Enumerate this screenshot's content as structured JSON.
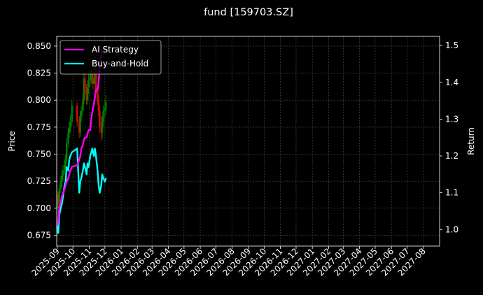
{
  "chart_data": {
    "type": "line",
    "title": "fund [159703.SZ]",
    "ylabel_left": "Price",
    "ylabel_right": "Return",
    "ylim_left": [
      0.665,
      0.859
    ],
    "ylim_right": [
      0.955,
      1.525
    ],
    "yticks_left": [
      "0.675",
      "0.700",
      "0.725",
      "0.750",
      "0.775",
      "0.800",
      "0.825",
      "0.850"
    ],
    "yticks_right": [
      "1.0",
      "1.1",
      "1.2",
      "1.3",
      "1.4",
      "1.5"
    ],
    "xticks": [
      "2025-09",
      "2025-10",
      "2025-11",
      "2025-12",
      "2026-01",
      "2026-02",
      "2026-03",
      "2026-04",
      "2026-05",
      "2026-06",
      "2026-07",
      "2026-08",
      "2026-09",
      "2026-10",
      "2026-11",
      "2026-12",
      "2027-01",
      "2027-02",
      "2027-03",
      "2027-04",
      "2027-05",
      "2027-06",
      "2027-07",
      "2027-08"
    ],
    "grid": true,
    "legend_position": "top-left",
    "series": [
      {
        "name": "AI Strategy",
        "color": "#ff00ff",
        "axis": "right",
        "x": [
          "2025-09-01",
          "2025-09-03",
          "2025-09-05",
          "2025-09-08",
          "2025-09-10",
          "2025-09-12",
          "2025-09-15",
          "2025-09-17",
          "2025-09-19",
          "2025-09-22",
          "2025-09-24",
          "2025-09-26",
          "2025-09-29",
          "2025-10-09",
          "2025-10-13",
          "2025-10-15",
          "2025-10-17",
          "2025-10-20",
          "2025-10-22",
          "2025-10-24",
          "2025-10-27",
          "2025-10-29",
          "2025-10-31",
          "2025-11-03",
          "2025-11-05",
          "2025-11-07",
          "2025-11-10",
          "2025-11-12",
          "2025-11-14",
          "2025-11-17",
          "2025-11-19",
          "2025-11-21",
          "2025-11-24",
          "2025-11-26"
        ],
        "values": [
          1.01,
          1.025,
          1.06,
          1.075,
          1.09,
          1.1,
          1.11,
          1.12,
          1.13,
          1.14,
          1.15,
          1.16,
          1.17,
          1.175,
          1.19,
          1.2,
          1.22,
          1.23,
          1.245,
          1.25,
          1.25,
          1.26,
          1.27,
          1.27,
          1.3,
          1.32,
          1.34,
          1.36,
          1.38,
          1.38,
          1.4,
          1.44,
          1.47,
          1.49
        ]
      },
      {
        "name": "Buy-and-Hold",
        "color": "#00ffff",
        "axis": "right",
        "x": [
          "2025-09-01",
          "2025-09-03",
          "2025-09-05",
          "2025-09-08",
          "2025-09-10",
          "2025-09-12",
          "2025-09-15",
          "2025-09-17",
          "2025-09-19",
          "2025-09-22",
          "2025-09-24",
          "2025-09-26",
          "2025-09-29",
          "2025-10-09",
          "2025-10-13",
          "2025-10-15",
          "2025-10-17",
          "2025-10-20",
          "2025-10-22",
          "2025-10-24",
          "2025-10-27",
          "2025-10-29",
          "2025-10-31",
          "2025-11-03",
          "2025-11-05",
          "2025-11-07",
          "2025-11-10",
          "2025-11-12",
          "2025-11-14",
          "2025-11-17",
          "2025-11-19",
          "2025-11-21",
          "2025-11-24",
          "2025-11-26",
          "2025-11-28",
          "2025-12-01",
          "2025-12-03"
        ],
        "values": [
          1.01,
          0.99,
          1.04,
          1.06,
          1.07,
          1.09,
          1.12,
          1.13,
          1.17,
          1.16,
          1.19,
          1.2,
          1.21,
          1.22,
          1.1,
          1.13,
          1.14,
          1.16,
          1.18,
          1.17,
          1.15,
          1.18,
          1.17,
          1.2,
          1.21,
          1.22,
          1.2,
          1.22,
          1.2,
          1.16,
          1.12,
          1.1,
          1.12,
          1.15,
          1.14,
          1.13,
          1.14
        ]
      },
      {
        "name": "",
        "type": "candlestick",
        "axis": "left",
        "up_color": "#008000",
        "down_color": "#cc1100",
        "x": [
          "2025-09-01",
          "2025-09-03",
          "2025-09-05",
          "2025-09-08",
          "2025-09-10",
          "2025-09-12",
          "2025-09-15",
          "2025-09-17",
          "2025-09-19",
          "2025-09-22",
          "2025-09-24",
          "2025-09-26",
          "2025-09-29",
          "2025-10-09",
          "2025-10-13",
          "2025-10-15",
          "2025-10-17",
          "2025-10-20",
          "2025-10-22",
          "2025-10-24",
          "2025-10-27",
          "2025-10-29",
          "2025-10-31",
          "2025-11-03",
          "2025-11-05",
          "2025-11-07",
          "2025-11-10",
          "2025-11-12",
          "2025-11-14",
          "2025-11-17",
          "2025-11-19",
          "2025-11-21",
          "2025-11-24",
          "2025-11-26",
          "2025-11-28",
          "2025-12-01",
          "2025-12-03"
        ],
        "open": [
          0.7,
          0.712,
          0.705,
          0.718,
          0.725,
          0.73,
          0.735,
          0.74,
          0.745,
          0.76,
          0.77,
          0.775,
          0.78,
          0.795,
          0.78,
          0.77,
          0.785,
          0.79,
          0.8,
          0.82,
          0.81,
          0.8,
          0.812,
          0.818,
          0.822,
          0.825,
          0.815,
          0.82,
          0.83,
          0.81,
          0.8,
          0.79,
          0.775,
          0.77,
          0.78,
          0.79,
          0.792
        ],
        "close": [
          0.712,
          0.705,
          0.718,
          0.725,
          0.73,
          0.735,
          0.74,
          0.745,
          0.76,
          0.77,
          0.775,
          0.78,
          0.795,
          0.78,
          0.77,
          0.785,
          0.79,
          0.8,
          0.82,
          0.81,
          0.8,
          0.812,
          0.818,
          0.822,
          0.825,
          0.815,
          0.82,
          0.83,
          0.81,
          0.8,
          0.79,
          0.775,
          0.77,
          0.78,
          0.79,
          0.792,
          0.798
        ],
        "high": [
          0.716,
          0.715,
          0.722,
          0.73,
          0.735,
          0.74,
          0.745,
          0.75,
          0.765,
          0.774,
          0.78,
          0.786,
          0.8,
          0.798,
          0.785,
          0.79,
          0.795,
          0.805,
          0.826,
          0.825,
          0.815,
          0.818,
          0.824,
          0.828,
          0.835,
          0.83,
          0.826,
          0.84,
          0.835,
          0.815,
          0.805,
          0.795,
          0.785,
          0.785,
          0.795,
          0.8,
          0.805
        ],
        "low": [
          0.695,
          0.7,
          0.702,
          0.714,
          0.72,
          0.726,
          0.731,
          0.736,
          0.742,
          0.756,
          0.765,
          0.77,
          0.776,
          0.776,
          0.765,
          0.766,
          0.78,
          0.786,
          0.796,
          0.805,
          0.796,
          0.796,
          0.806,
          0.812,
          0.816,
          0.81,
          0.81,
          0.815,
          0.805,
          0.795,
          0.785,
          0.77,
          0.762,
          0.765,
          0.775,
          0.784,
          0.786
        ]
      }
    ]
  }
}
